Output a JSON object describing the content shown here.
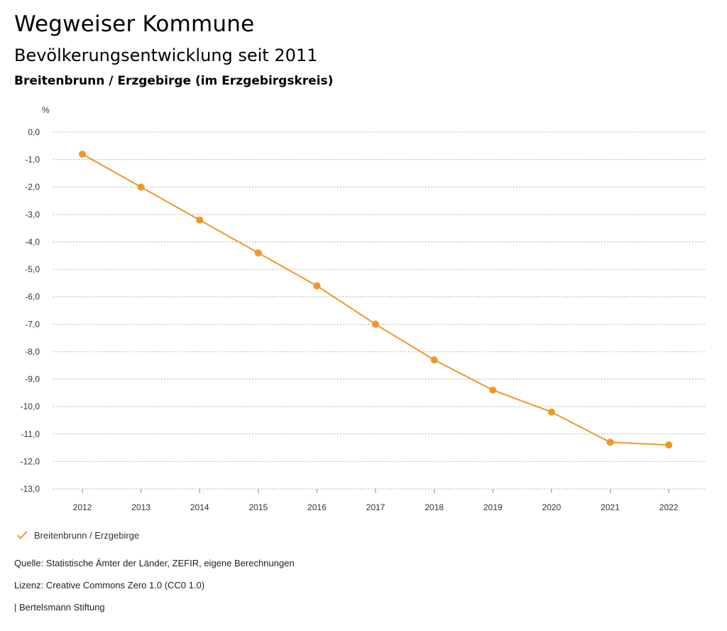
{
  "header": {
    "title": "Wegweiser Kommune",
    "subtitle": "Bevölkerungsentwicklung seit 2011",
    "region": "Breitenbrunn / Erzgebirge (im Erzgebirgskreis)"
  },
  "chart_data": {
    "type": "line",
    "unit_label": "%",
    "x": [
      2012,
      2013,
      2014,
      2015,
      2016,
      2017,
      2018,
      2019,
      2020,
      2021,
      2022
    ],
    "series": [
      {
        "name": "Breitenbrunn / Erzgebirge",
        "values": [
          -0.8,
          -2.0,
          -3.2,
          -4.4,
          -5.6,
          -7.0,
          -8.3,
          -9.4,
          -10.2,
          -11.3,
          -11.4
        ],
        "color": "#f0962c"
      }
    ],
    "ylim": [
      -13,
      0
    ],
    "y_ticks": [
      "0,0",
      "-1,0",
      "-2,0",
      "-3,0",
      "-4,0",
      "-5,0",
      "-6,0",
      "-7,0",
      "-8,0",
      "-9,0",
      "-10,0",
      "-11,0",
      "-12,0",
      "-13,0"
    ],
    "grid": true,
    "legend_position": "bottom-left"
  },
  "footer": {
    "source": "Quelle: Statistische Ämter der Länder, ZEFIR, eigene Berechnungen",
    "license": "Lizenz: Creative Commons Zero 1.0 (CC0 1.0)",
    "publisher": "| Bertelsmann Stiftung"
  }
}
